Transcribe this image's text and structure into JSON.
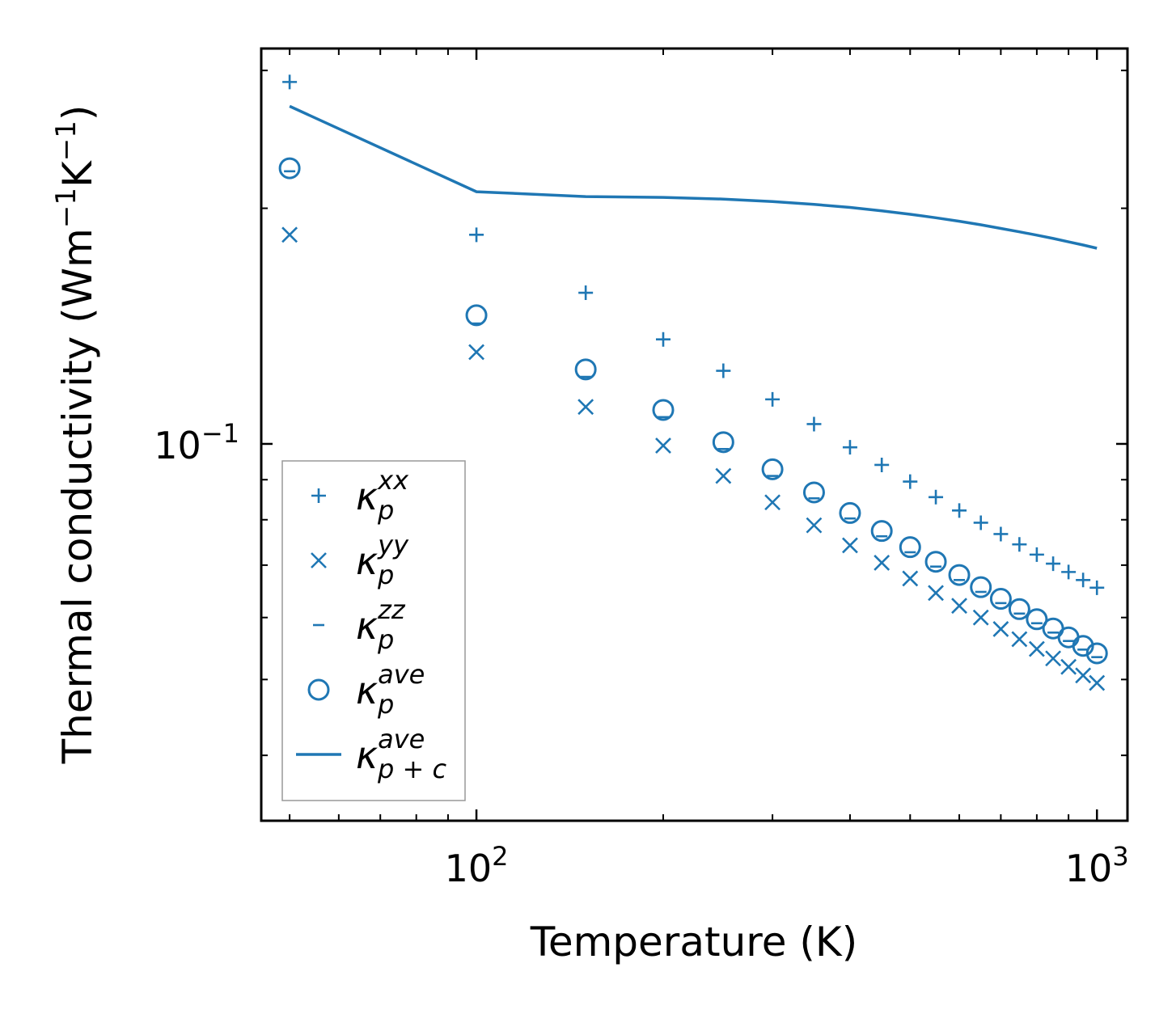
{
  "chart_data": {
    "type": "scatter",
    "scale": {
      "x": "log",
      "y": "log"
    },
    "xlabel": "Temperature (K)",
    "ylabel": {
      "prefix": "Thermal conductivity (Wm",
      "sup1": "−1",
      "mid": "K",
      "sup2": "−1",
      "suffix": ")"
    },
    "xlim": [
      45,
      1120
    ],
    "ylim": [
      0.033,
      0.32
    ],
    "x_ticks": [
      {
        "value": 100,
        "base": "10",
        "exp": "2"
      },
      {
        "value": 1000,
        "base": "10",
        "exp": "3"
      }
    ],
    "y_ticks": [
      {
        "value": 0.1,
        "base": "10",
        "exp": "−1"
      }
    ],
    "color": "#1f77b4",
    "x": [
      50,
      100,
      150,
      200,
      250,
      300,
      350,
      400,
      450,
      500,
      550,
      600,
      650,
      700,
      750,
      800,
      850,
      900,
      950,
      1000
    ],
    "series": [
      {
        "name": "kappa_p_xx",
        "marker": "plus",
        "label": {
          "base": "κ",
          "sub": "p",
          "sup": "xx"
        },
        "values": [
          0.29,
          0.185,
          0.156,
          0.136,
          0.124,
          0.114,
          0.106,
          0.099,
          0.094,
          0.0895,
          0.0855,
          0.0822,
          0.0793,
          0.0767,
          0.0744,
          0.0722,
          0.0703,
          0.0686,
          0.067,
          0.0655
        ]
      },
      {
        "name": "kappa_p_yy",
        "marker": "x",
        "label": {
          "base": "κ",
          "sub": "p",
          "sup": "yy"
        },
        "values": [
          0.185,
          0.131,
          0.1115,
          0.0995,
          0.091,
          0.0842,
          0.0787,
          0.0742,
          0.0705,
          0.0673,
          0.0645,
          0.0621,
          0.06,
          0.058,
          0.0563,
          0.0547,
          0.0532,
          0.0519,
          0.0506,
          0.0495
        ]
      },
      {
        "name": "kappa_p_zz",
        "marker": "dash",
        "label": {
          "base": "κ",
          "sub": "p",
          "sup": "zz"
        },
        "values": [
          0.223,
          0.1425,
          0.1218,
          0.1082,
          0.0985,
          0.091,
          0.0852,
          0.0803,
          0.0762,
          0.0727,
          0.0697,
          0.067,
          0.0647,
          0.0626,
          0.0607,
          0.059,
          0.0574,
          0.056,
          0.0546,
          0.0534
        ]
      },
      {
        "name": "kappa_p_ave",
        "marker": "circle",
        "label": {
          "base": "κ",
          "sub": "p",
          "sup": "ave"
        },
        "values": [
          0.225,
          0.146,
          0.1245,
          0.1105,
          0.1005,
          0.0928,
          0.0867,
          0.0816,
          0.0774,
          0.0738,
          0.0707,
          0.068,
          0.0656,
          0.0634,
          0.0615,
          0.0597,
          0.0581,
          0.0566,
          0.0552,
          0.054
        ]
      },
      {
        "name": "kappa_p_c_ave",
        "marker": "line",
        "label": {
          "base": "κ",
          "sub": "p + c",
          "sup": "ave"
        },
        "values": [
          0.27,
          0.21,
          0.207,
          0.2065,
          0.2055,
          0.204,
          0.2023,
          0.2005,
          0.1985,
          0.1965,
          0.1945,
          0.1925,
          0.1905,
          0.1885,
          0.1866,
          0.1848,
          0.183,
          0.1812,
          0.1795,
          0.1778
        ]
      }
    ],
    "legend_position": "lower-left"
  }
}
